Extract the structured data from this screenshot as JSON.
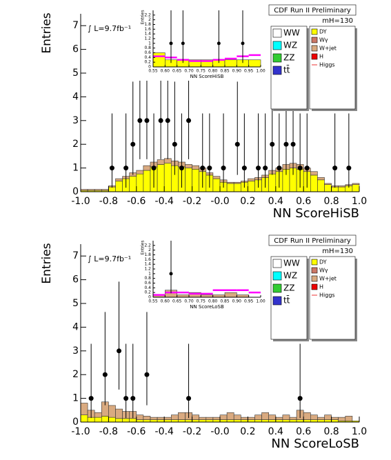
{
  "chart_data": [
    {
      "type": "histogram",
      "xlabel": "NN ScoreHiSB",
      "ylabel": "Entries",
      "annotations": [
        "CDF Run II Preliminary",
        "∫ L=9.7fb⁻¹",
        "mH=130"
      ],
      "xlim": [
        -1,
        1
      ],
      "ylim": [
        0,
        7.5
      ],
      "xticks": [
        {
          "value": -1,
          "label": "-1.0"
        },
        {
          "value": -0.8,
          "label": "-0.8"
        },
        {
          "value": -0.6,
          "label": "-0.6"
        },
        {
          "value": -0.4,
          "label": "-0.4"
        },
        {
          "value": -0.2,
          "label": "-0.2"
        },
        {
          "value": 0,
          "label": "-0.0"
        },
        {
          "value": 0.2,
          "label": "0.2"
        },
        {
          "value": 0.4,
          "label": "0.4"
        },
        {
          "value": 0.6,
          "label": "0.6"
        },
        {
          "value": 0.8,
          "label": "0.8"
        },
        {
          "value": 1,
          "label": "1.0"
        }
      ],
      "yticks": [
        0,
        1,
        2,
        3,
        4,
        5,
        6,
        7
      ],
      "bins": [
        -1,
        -0.95,
        -0.9,
        -0.85,
        -0.8,
        -0.75,
        -0.7,
        -0.65,
        -0.6,
        -0.55,
        -0.5,
        -0.45,
        -0.4,
        -0.35,
        -0.3,
        -0.25,
        -0.2,
        -0.15,
        -0.1,
        -0.05,
        0,
        0.05,
        0.1,
        0.15,
        0.2,
        0.25,
        0.3,
        0.35,
        0.4,
        0.45,
        0.5,
        0.55,
        0.6,
        0.65,
        0.7,
        0.75,
        0.8,
        0.85,
        0.9,
        0.95,
        1
      ],
      "series": [
        {
          "name": "WW",
          "color": "#ffffff"
        },
        {
          "name": "WZ",
          "color": "#00ffff"
        },
        {
          "name": "ZZ",
          "color": "#33cc33"
        },
        {
          "name": "tt̄",
          "color": "#3333cc"
        },
        {
          "name": "DY",
          "color": "#ffff00",
          "values": [
            0.05,
            0.05,
            0.05,
            0.05,
            0.2,
            0.45,
            0.55,
            0.65,
            0.75,
            0.9,
            1.05,
            1.15,
            1.2,
            1.1,
            1.05,
            1.0,
            0.95,
            0.85,
            0.7,
            0.55,
            0.4,
            0.35,
            0.35,
            0.4,
            0.45,
            0.5,
            0.6,
            0.75,
            0.85,
            0.95,
            1.0,
            0.95,
            0.85,
            0.7,
            0.5,
            0.3,
            0.2,
            0.2,
            0.25,
            0.3
          ]
        },
        {
          "name": "Wγ",
          "color": "#cc7766"
        },
        {
          "name": "W+jet",
          "color": "#d9aa80",
          "values": [
            0.05,
            0.05,
            0.05,
            0.05,
            0.05,
            0.1,
            0.1,
            0.15,
            0.15,
            0.2,
            0.2,
            0.2,
            0.2,
            0.2,
            0.2,
            0.15,
            0.15,
            0.15,
            0.1,
            0.1,
            0.1,
            0.05,
            0.05,
            0.05,
            0.1,
            0.1,
            0.1,
            0.15,
            0.15,
            0.2,
            0.2,
            0.2,
            0.15,
            0.15,
            0.1,
            0.05,
            0.05,
            0.05,
            0.05,
            0.05
          ]
        },
        {
          "name": "H",
          "color": "#ee0000"
        },
        {
          "name": "Higgs",
          "color": "#ee3333",
          "style": "line"
        }
      ],
      "points": {
        "x": [
          -0.775,
          -0.675,
          -0.625,
          -0.575,
          -0.525,
          -0.475,
          -0.425,
          -0.375,
          -0.325,
          -0.275,
          -0.225,
          -0.125,
          -0.075,
          0.025,
          0.125,
          0.175,
          0.275,
          0.325,
          0.375,
          0.425,
          0.475,
          0.525,
          0.575,
          0.625,
          0.825,
          0.925
        ],
        "values": [
          1,
          1,
          2,
          3,
          3,
          1,
          3,
          3,
          2,
          1,
          3,
          1,
          1,
          1,
          2,
          1,
          1,
          1,
          2,
          1,
          2,
          2,
          1,
          1,
          1,
          1
        ],
        "err_low": [
          0.83,
          0.83,
          1.29,
          1.63,
          1.63,
          0.83,
          1.63,
          1.63,
          1.29,
          0.83,
          1.63,
          0.83,
          0.83,
          0.83,
          1.29,
          0.83,
          0.83,
          0.83,
          1.29,
          0.83,
          1.29,
          1.29,
          0.83,
          0.83,
          0.83,
          0.83
        ],
        "err_high": [
          2.3,
          2.3,
          2.64,
          2.92,
          2.92,
          2.3,
          2.92,
          2.92,
          2.64,
          2.3,
          2.92,
          2.3,
          2.3,
          2.3,
          2.64,
          2.3,
          2.3,
          2.3,
          2.64,
          2.3,
          2.64,
          2.64,
          2.3,
          2.3,
          2.3,
          2.3
        ]
      },
      "inset": {
        "xlabel": "NN ScoreHiSB",
        "ylabel": "Entries",
        "xlim": [
          0.55,
          1
        ],
        "ylim": [
          0,
          2.4
        ],
        "xticks": [
          {
            "value": 0.55,
            "label": "0.55"
          },
          {
            "value": 0.6,
            "label": "0.60"
          },
          {
            "value": 0.65,
            "label": "0.65"
          },
          {
            "value": 0.7,
            "label": "0.70"
          },
          {
            "value": 0.75,
            "label": "0.75"
          },
          {
            "value": 0.8,
            "label": "0.80"
          },
          {
            "value": 0.85,
            "label": "0.85"
          },
          {
            "value": 0.9,
            "label": "0.90"
          },
          {
            "value": 0.95,
            "label": "0.95"
          },
          {
            "value": 1,
            "label": "1.00"
          }
        ],
        "yticks": [
          0,
          0.2,
          0.4,
          0.6,
          0.8,
          1,
          1.2,
          1.4,
          1.6,
          1.8,
          2,
          2.2
        ],
        "bins": [
          0.55,
          0.6,
          0.65,
          0.7,
          0.75,
          0.8,
          0.85,
          0.9,
          0.95,
          1
        ],
        "series": [
          {
            "color": "#ffff00",
            "values": [
              0.6,
              0.3,
              0.3,
              0.3,
              0.3,
              0.3,
              0.3,
              0.3,
              0.3
            ]
          }
        ],
        "signal": {
          "color": "#ff00ff",
          "values": [
            0.45,
            0.4,
            0.3,
            0.25,
            0.25,
            0.3,
            0.35,
            0.45,
            0.5
          ]
        },
        "points": {
          "x": [
            0.625,
            0.675,
            0.825,
            0.925
          ],
          "values": [
            1,
            1,
            1,
            1
          ],
          "err_low": [
            0.83,
            0.83,
            0.83,
            0.83
          ],
          "err_high": [
            2.3,
            2.3,
            2.3,
            2.3
          ]
        }
      }
    },
    {
      "type": "histogram",
      "xlabel": "NN ScoreLoSB",
      "ylabel": "Entries",
      "annotations": [
        "CDF Run II Preliminary",
        "∫ L=9.7fb⁻¹",
        "mH=130"
      ],
      "xlim": [
        -1,
        1
      ],
      "ylim": [
        0,
        7.5
      ],
      "xticks": [
        {
          "value": -1,
          "label": "-1.0"
        },
        {
          "value": -0.8,
          "label": "-0.8"
        },
        {
          "value": -0.6,
          "label": "-0.6"
        },
        {
          "value": -0.4,
          "label": "-0.4"
        },
        {
          "value": -0.2,
          "label": "-0.2"
        },
        {
          "value": 0,
          "label": "-0.0"
        },
        {
          "value": 0.2,
          "label": "0.2"
        },
        {
          "value": 0.4,
          "label": "0.4"
        },
        {
          "value": 0.6,
          "label": "0.6"
        },
        {
          "value": 0.8,
          "label": "0.8"
        },
        {
          "value": 1,
          "label": "1.0"
        }
      ],
      "yticks": [
        0,
        1,
        2,
        3,
        4,
        5,
        6,
        7
      ],
      "bins": [
        -1,
        -0.95,
        -0.9,
        -0.85,
        -0.8,
        -0.75,
        -0.7,
        -0.65,
        -0.6,
        -0.55,
        -0.5,
        -0.45,
        -0.4,
        -0.35,
        -0.3,
        -0.25,
        -0.2,
        -0.15,
        -0.1,
        -0.05,
        0,
        0.05,
        0.1,
        0.15,
        0.2,
        0.25,
        0.3,
        0.35,
        0.4,
        0.45,
        0.5,
        0.55,
        0.6,
        0.65,
        0.7,
        0.75,
        0.8,
        0.85,
        0.9,
        0.95,
        1
      ],
      "series": [
        {
          "name": "WW",
          "color": "#ffffff"
        },
        {
          "name": "WZ",
          "color": "#00ffff"
        },
        {
          "name": "ZZ",
          "color": "#33cc33"
        },
        {
          "name": "tt̄",
          "color": "#3333cc"
        },
        {
          "name": "DY",
          "color": "#ffff00",
          "values": [
            0.3,
            0.2,
            0.2,
            0.25,
            0.2,
            0.15,
            0.15,
            0.15,
            0.1,
            0.1,
            0.1,
            0.1,
            0.1,
            0.1,
            0.1,
            0.1,
            0.1,
            0.1,
            0.1,
            0.1,
            0.1,
            0.1,
            0.1,
            0.1,
            0.1,
            0.1,
            0.1,
            0.1,
            0.1,
            0.1,
            0.1,
            0.1,
            0.1,
            0.1,
            0.1,
            0.1,
            0.1,
            0.05,
            0.05,
            0.05
          ]
        },
        {
          "name": "Wγ",
          "color": "#cc7766"
        },
        {
          "name": "W+jet",
          "color": "#d9aa80",
          "values": [
            0.5,
            0.3,
            0.2,
            0.6,
            0.5,
            0.4,
            0.3,
            0.3,
            0.2,
            0.15,
            0.1,
            0.1,
            0.1,
            0.2,
            0.3,
            0.3,
            0.2,
            0.1,
            0.1,
            0.1,
            0.2,
            0.3,
            0.2,
            0.1,
            0.1,
            0.2,
            0.3,
            0.2,
            0.1,
            0.2,
            0.1,
            0.4,
            0.3,
            0.2,
            0.1,
            0.2,
            0.1,
            0.15,
            0.2,
            0
          ]
        },
        {
          "name": "H",
          "color": "#ee0000"
        },
        {
          "name": "Higgs",
          "color": "#ee3333",
          "style": "line"
        }
      ],
      "points": {
        "x": [
          -0.925,
          -0.825,
          -0.725,
          -0.675,
          -0.625,
          -0.525,
          -0.225,
          0.575
        ],
        "values": [
          1,
          2,
          3,
          1,
          1,
          2,
          1,
          1
        ],
        "err_low": [
          0.83,
          1.29,
          1.63,
          0.83,
          0.83,
          1.29,
          0.83,
          0.83
        ],
        "err_high": [
          2.3,
          2.64,
          2.92,
          2.3,
          2.3,
          2.64,
          2.3,
          2.3
        ]
      },
      "inset": {
        "xlabel": "NN ScoreLoSB",
        "ylabel": "Entries",
        "xlim": [
          0.55,
          1
        ],
        "ylim": [
          0,
          2.4
        ],
        "xticks": [
          {
            "value": 0.55,
            "label": "0.55"
          },
          {
            "value": 0.6,
            "label": "0.60"
          },
          {
            "value": 0.65,
            "label": "0.65"
          },
          {
            "value": 0.7,
            "label": "0.70"
          },
          {
            "value": 0.75,
            "label": "0.75"
          },
          {
            "value": 0.8,
            "label": "0.80"
          },
          {
            "value": 0.85,
            "label": "0.85"
          },
          {
            "value": 0.9,
            "label": "0.90"
          },
          {
            "value": 0.95,
            "label": "0.95"
          },
          {
            "value": 1,
            "label": "1.00"
          }
        ],
        "yticks": [
          0,
          0.2,
          0.4,
          0.6,
          0.8,
          1,
          1.2,
          1.4,
          1.6,
          1.8,
          2,
          2.2
        ],
        "bins": [
          0.55,
          0.6,
          0.65,
          0.7,
          0.75,
          0.8,
          0.85,
          0.9,
          0.95,
          1
        ],
        "series": [
          {
            "color": "#d9aa80",
            "values": [
              0.1,
              0.3,
              0.1,
              0.2,
              0.1,
              0.1,
              0.2,
              0.1,
              0
            ]
          }
        ],
        "signal": {
          "color": "#ff00ff",
          "values": [
            0.1,
            0.2,
            0.2,
            0.15,
            0.15,
            0.3,
            0.3,
            0.3,
            0.2
          ]
        },
        "points": {
          "x": [
            0.625
          ],
          "values": [
            1
          ],
          "err_low": [
            0.83
          ],
          "err_high": [
            2.3
          ]
        }
      }
    }
  ]
}
